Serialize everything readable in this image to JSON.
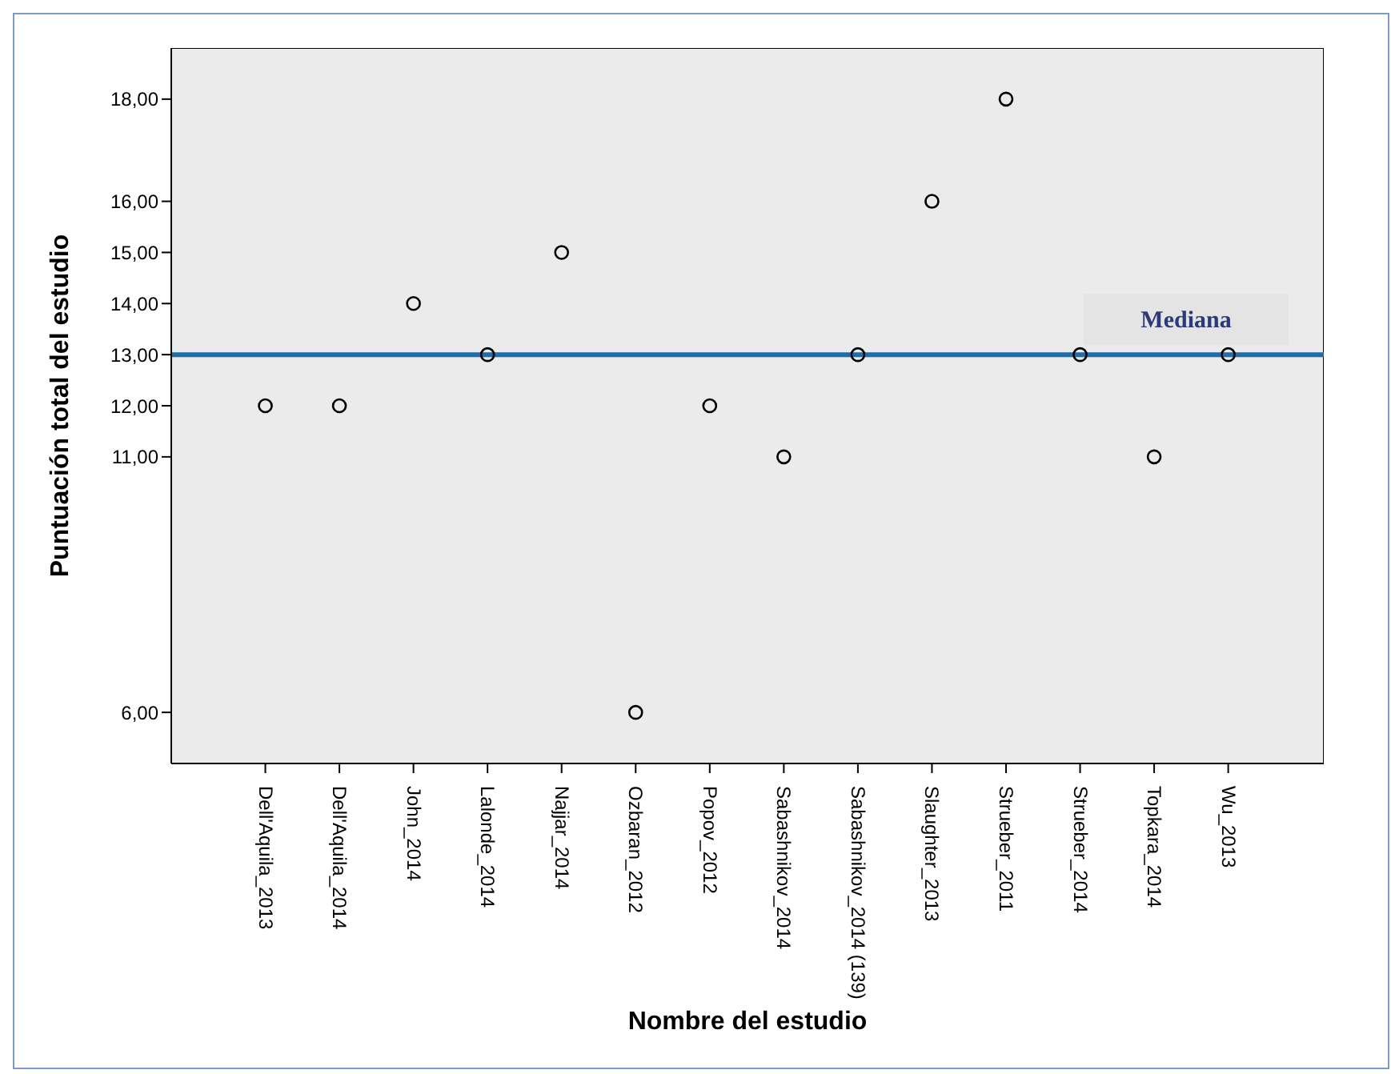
{
  "chart_data": {
    "type": "scatter",
    "xlabel": "Nombre del estudio",
    "ylabel": "Puntuación total del estudio",
    "categories": [
      "Dell'Aquila_2013",
      "Dell'Aquila_2014",
      "John_2014",
      "Lalonde_2014",
      "Najjar_2014",
      "Ozbaran_2012",
      "Popov_2012",
      "Sabashnikov_2014",
      "Sabashnikov_2014 (139)",
      "Slaughter_2013",
      "Strueber_2011",
      "Strueber_2014",
      "Topkara_2014",
      "Wu_2013"
    ],
    "series": [
      {
        "color": "#000000",
        "values": [
          12,
          12,
          14,
          13,
          15,
          6,
          12,
          11,
          13,
          16,
          18,
          13,
          11,
          13
        ]
      }
    ],
    "yticks": [
      {
        "value": 6,
        "label": "6,00"
      },
      {
        "value": 11,
        "label": "11,00"
      },
      {
        "value": 12,
        "label": "12,00"
      },
      {
        "value": 13,
        "label": "13,00"
      },
      {
        "value": 14,
        "label": "14,00"
      },
      {
        "value": 15,
        "label": "15,00"
      },
      {
        "value": 16,
        "label": "16,00"
      },
      {
        "value": 18,
        "label": "18,00"
      }
    ],
    "ref_lines": [
      {
        "axis": "y",
        "value": 13,
        "label": "Mediana",
        "color": "#1f6eaa"
      }
    ],
    "ylim": [
      5,
      19
    ],
    "marker": "circle"
  }
}
